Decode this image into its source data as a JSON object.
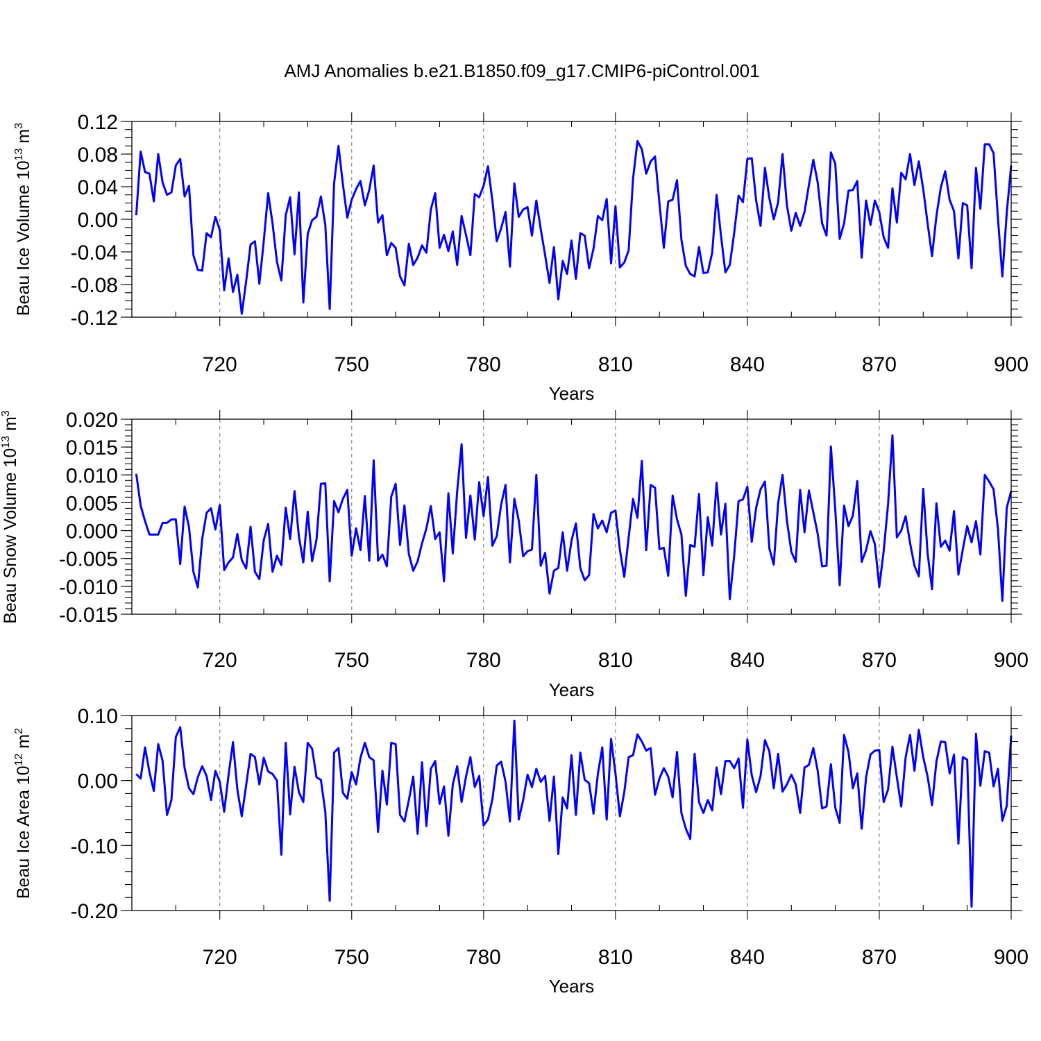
{
  "figure": {
    "title": "AMJ Anomalies b.e21.B1850.f09_g17.CMIP6-piControl.001"
  },
  "chart_data": [
    {
      "type": "line",
      "title": "",
      "xlabel": "Years",
      "ylabel": "Beau Ice Volume 10",
      "ylabel_exp": "13",
      "ylabel_unit": " m",
      "ylabel_unit_exp": "3",
      "xlim": [
        700,
        900
      ],
      "ylim": [
        -0.12,
        0.12
      ],
      "xticks": [
        720,
        750,
        780,
        810,
        840,
        870,
        900
      ],
      "xtick_labels": [
        "720",
        "750",
        "780",
        "810",
        "840",
        "870",
        "900"
      ],
      "yticks": [
        -0.12,
        -0.08,
        -0.04,
        0.0,
        0.04,
        0.08,
        0.12
      ],
      "ytick_labels": [
        "-0.12",
        "-0.08",
        "-0.04",
        "0.00",
        "0.04",
        "0.08",
        "0.12"
      ],
      "grid": "vertical dashed",
      "series": [
        {
          "name": "Beau Ice Volume",
          "color": "#0000ff",
          "x_start": 701,
          "x_step": 1,
          "values": [
            0.005,
            0.083,
            0.058,
            0.056,
            0.022,
            0.08,
            0.045,
            0.03,
            0.033,
            0.066,
            0.074,
            0.028,
            0.041,
            -0.044,
            -0.062,
            -0.063,
            -0.017,
            -0.022,
            0.003,
            -0.013,
            -0.087,
            -0.048,
            -0.089,
            -0.068,
            -0.116,
            -0.076,
            -0.031,
            -0.027,
            -0.079,
            -0.027,
            0.032,
            -0.005,
            -0.052,
            -0.075,
            0.005,
            0.027,
            -0.043,
            0.033,
            -0.102,
            -0.018,
            -0.001,
            0.003,
            0.028,
            -0.007,
            -0.11,
            0.044,
            0.09,
            0.043,
            0.002,
            0.024,
            0.037,
            0.047,
            0.017,
            0.036,
            0.066,
            -0.004,
            0.005,
            -0.044,
            -0.029,
            -0.035,
            -0.07,
            -0.081,
            -0.03,
            -0.056,
            -0.047,
            -0.032,
            -0.041,
            0.012,
            0.032,
            -0.035,
            -0.019,
            -0.039,
            -0.015,
            -0.056,
            0.004,
            -0.019,
            -0.044,
            0.031,
            0.027,
            0.041,
            0.065,
            0.023,
            -0.027,
            -0.011,
            0.009,
            -0.058,
            0.044,
            0.003,
            0.012,
            0.015,
            -0.02,
            0.023,
            -0.012,
            -0.044,
            -0.078,
            -0.034,
            -0.098,
            -0.051,
            -0.067,
            -0.026,
            -0.073,
            -0.017,
            -0.02,
            -0.06,
            -0.036,
            0.004,
            -0.001,
            0.025,
            -0.054,
            0.016,
            -0.059,
            -0.053,
            -0.038,
            0.05,
            0.096,
            0.086,
            0.056,
            0.071,
            0.077,
            0.02,
            -0.035,
            0.022,
            0.024,
            0.048,
            -0.025,
            -0.057,
            -0.067,
            -0.07,
            -0.034,
            -0.066,
            -0.065,
            -0.041,
            0.03,
            -0.02,
            -0.065,
            -0.056,
            -0.017,
            0.029,
            0.021,
            0.074,
            0.075,
            0.023,
            -0.008,
            0.063,
            0.026,
            0.0,
            0.021,
            0.08,
            0.017,
            -0.014,
            0.008,
            -0.008,
            0.009,
            0.042,
            0.073,
            0.045,
            -0.005,
            -0.02,
            0.082,
            0.068,
            -0.024,
            -0.005,
            0.035,
            0.036,
            0.047,
            -0.047,
            0.023,
            -0.007,
            0.023,
            0.009,
            -0.022,
            -0.035,
            0.038,
            -0.004,
            0.057,
            0.049,
            0.08,
            0.042,
            0.071,
            0.037,
            -0.005,
            -0.045,
            0.004,
            0.039,
            0.059,
            0.024,
            0.01,
            -0.048,
            0.02,
            0.017,
            -0.06,
            0.063,
            0.013,
            0.092,
            0.092,
            0.081,
            0.001,
            -0.07,
            0.008,
            0.066
          ]
        }
      ]
    },
    {
      "type": "line",
      "title": "",
      "xlabel": "Years",
      "ylabel": "Beau Snow Volume 10",
      "ylabel_exp": "13",
      "ylabel_unit": " m",
      "ylabel_unit_exp": "3",
      "xlim": [
        700,
        900
      ],
      "ylim": [
        -0.015,
        0.02
      ],
      "xticks": [
        720,
        750,
        780,
        810,
        840,
        870,
        900
      ],
      "xtick_labels": [
        "720",
        "750",
        "780",
        "810",
        "840",
        "870",
        "900"
      ],
      "yticks": [
        -0.015,
        -0.01,
        -0.005,
        0.0,
        0.005,
        0.01,
        0.015,
        0.02
      ],
      "ytick_labels": [
        "-0.015",
        "-0.010",
        "-0.005",
        "0.000",
        "0.005",
        "0.010",
        "0.015",
        "0.020"
      ],
      "grid": "vertical dashed",
      "series": [
        {
          "name": "Beau Snow Volume",
          "color": "#0000ff",
          "x_start": 701,
          "x_step": 1,
          "values": [
            0.0102,
            0.0045,
            0.0017,
            -0.0007,
            -0.0007,
            -0.0007,
            0.0014,
            0.0014,
            0.002,
            0.002,
            -0.006,
            0.0043,
            0.0006,
            -0.0074,
            -0.0102,
            -0.0015,
            0.0032,
            0.004,
            0.0002,
            0.0046,
            -0.0071,
            -0.0057,
            -0.0048,
            -0.0006,
            -0.0053,
            -0.0068,
            0.0007,
            -0.0074,
            -0.0087,
            -0.0017,
            0.0012,
            -0.0074,
            -0.0045,
            -0.0062,
            0.0041,
            -0.0015,
            0.0071,
            -0.0011,
            -0.0057,
            0.0034,
            -0.0055,
            -0.0016,
            0.0084,
            0.0085,
            -0.0091,
            0.0053,
            0.0033,
            0.0057,
            0.0073,
            -0.0045,
            0.0004,
            -0.0035,
            0.0062,
            -0.0054,
            0.0126,
            -0.0054,
            -0.0043,
            -0.0064,
            0.0061,
            0.0084,
            -0.0026,
            0.0045,
            -0.0042,
            -0.0072,
            -0.0055,
            -0.0023,
            0.0004,
            0.0044,
            -0.0015,
            -0.0003,
            -0.0091,
            0.0067,
            -0.0041,
            0.0071,
            0.0155,
            -0.0013,
            0.0063,
            -0.0016,
            0.0087,
            0.0026,
            0.0096,
            -0.0027,
            -0.001,
            0.0047,
            0.0082,
            -0.0057,
            0.0057,
            0.0018,
            -0.0046,
            -0.0037,
            -0.0034,
            0.01,
            -0.0063,
            -0.004,
            -0.0113,
            -0.0072,
            -0.0067,
            -0.0003,
            -0.0072,
            -0.0018,
            0.0013,
            -0.0067,
            -0.0089,
            -0.008,
            0.003,
            0.0004,
            0.0018,
            -0.0003,
            0.0032,
            0.0036,
            -0.0034,
            -0.0083,
            -0.0012,
            0.0057,
            0.0023,
            0.0125,
            -0.0035,
            0.0082,
            0.0077,
            -0.0033,
            -0.0031,
            -0.0081,
            0.0063,
            0.002,
            -0.0007,
            -0.0117,
            -0.0026,
            -0.0029,
            0.0066,
            -0.008,
            0.0024,
            -0.0027,
            0.0086,
            -0.0007,
            0.0048,
            -0.0123,
            -0.0045,
            0.0053,
            0.0056,
            0.0079,
            -0.002,
            0.0041,
            0.0074,
            0.0088,
            -0.0032,
            -0.0061,
            0.0049,
            0.01,
            0.0018,
            -0.0038,
            -0.0056,
            0.0073,
            -0.0003,
            0.0072,
            0.0033,
            -0.0006,
            -0.0064,
            -0.0063,
            0.0151,
            0.0037,
            -0.0098,
            0.0045,
            0.0008,
            0.0027,
            0.0089,
            -0.0056,
            -0.0035,
            -0.0001,
            -0.0024,
            -0.0101,
            -0.0037,
            0.0047,
            0.0171,
            -0.0012,
            0.0,
            0.0026,
            -0.0022,
            -0.0063,
            -0.0082,
            0.0075,
            -0.0041,
            -0.0105,
            0.0049,
            -0.0029,
            -0.0018,
            -0.0036,
            0.0035,
            -0.0079,
            -0.0034,
            0.0008,
            -0.0021,
            0.0017,
            -0.0043,
            0.01,
            0.0088,
            0.0074,
            0.0003,
            -0.0126,
            0.0041,
            0.0071
          ]
        }
      ]
    },
    {
      "type": "line",
      "title": "",
      "xlabel": "Years",
      "ylabel": "Beau Ice Area 10",
      "ylabel_exp": "12",
      "ylabel_unit": " m",
      "ylabel_unit_exp": "2",
      "xlim": [
        700,
        900
      ],
      "ylim": [
        -0.2,
        0.1
      ],
      "xticks": [
        720,
        750,
        780,
        810,
        840,
        870,
        900
      ],
      "xtick_labels": [
        "720",
        "750",
        "780",
        "810",
        "840",
        "870",
        "900"
      ],
      "yticks": [
        -0.2,
        -0.1,
        0.0,
        0.1
      ],
      "ytick_labels": [
        "-0.20",
        "-0.10",
        "0.00",
        "0.10"
      ],
      "grid": "vertical dashed",
      "series": [
        {
          "name": "Beau Ice Area",
          "color": "#0000ff",
          "x_start": 701,
          "x_step": 1,
          "values": [
            0.01,
            0.003,
            0.051,
            0.013,
            -0.016,
            0.056,
            0.03,
            -0.053,
            -0.03,
            0.067,
            0.082,
            0.019,
            -0.012,
            -0.021,
            0.005,
            0.022,
            0.007,
            -0.03,
            0.015,
            -0.002,
            -0.048,
            0.009,
            0.059,
            -0.014,
            -0.055,
            -0.007,
            0.041,
            0.036,
            -0.006,
            0.035,
            0.014,
            0.01,
            0.0,
            -0.114,
            0.058,
            -0.052,
            0.021,
            -0.018,
            -0.033,
            0.058,
            0.049,
            0.005,
            0.001,
            -0.048,
            -0.185,
            0.043,
            0.05,
            -0.019,
            -0.028,
            0.013,
            -0.006,
            0.035,
            0.058,
            0.036,
            0.031,
            -0.079,
            0.015,
            -0.037,
            0.058,
            0.056,
            -0.053,
            -0.063,
            -0.03,
            0.006,
            -0.082,
            0.028,
            -0.07,
            0.018,
            0.03,
            -0.036,
            -0.009,
            -0.085,
            -0.006,
            0.022,
            -0.033,
            0.006,
            0.036,
            -0.01,
            0.007,
            -0.069,
            -0.06,
            -0.029,
            0.023,
            0.029,
            -0.002,
            -0.063,
            0.092,
            -0.06,
            -0.03,
            0.009,
            -0.01,
            0.018,
            -0.002,
            0.007,
            -0.062,
            0.006,
            -0.113,
            -0.026,
            -0.043,
            0.039,
            -0.053,
            0.043,
            0.001,
            -0.004,
            -0.051,
            0.01,
            0.051,
            -0.06,
            0.064,
            0.011,
            -0.055,
            -0.018,
            0.036,
            0.039,
            0.071,
            0.06,
            0.046,
            0.05,
            -0.022,
            0.003,
            0.019,
            0.006,
            -0.026,
            0.044,
            -0.05,
            -0.074,
            -0.09,
            0.041,
            -0.033,
            -0.05,
            -0.03,
            -0.046,
            0.02,
            -0.021,
            0.03,
            0.03,
            0.019,
            0.034,
            -0.042,
            0.063,
            0.008,
            -0.018,
            0.007,
            0.062,
            0.045,
            -0.012,
            0.041,
            -0.017,
            -0.006,
            0.009,
            -0.006,
            -0.05,
            0.02,
            0.024,
            0.05,
            0.015,
            -0.043,
            -0.04,
            0.025,
            -0.042,
            -0.065,
            0.07,
            0.044,
            -0.012,
            0.011,
            -0.074,
            0.005,
            0.04,
            0.046,
            0.047,
            -0.033,
            -0.014,
            0.052,
            0.005,
            -0.04,
            0.036,
            0.07,
            0.015,
            0.078,
            0.036,
            0.006,
            -0.038,
            0.029,
            0.06,
            0.059,
            0.011,
            0.04,
            -0.097,
            0.036,
            0.032,
            -0.194,
            0.072,
            -0.008,
            0.045,
            0.043,
            -0.009,
            0.018,
            -0.062,
            -0.039,
            0.069
          ]
        }
      ]
    }
  ]
}
